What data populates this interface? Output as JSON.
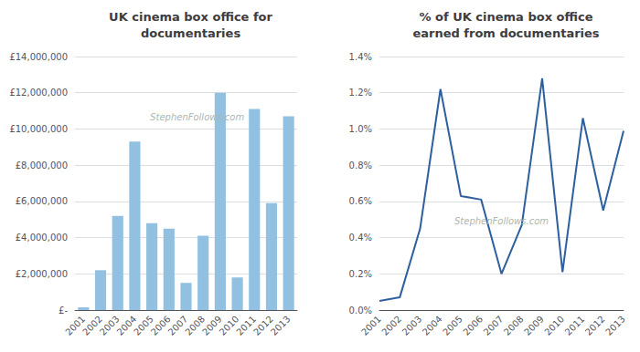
{
  "chart_data": [
    {
      "type": "bar",
      "title": "UK cinema box office for\ndocumentaries",
      "categories": [
        "2001",
        "2002",
        "2003",
        "2004",
        "2005",
        "2006",
        "2007",
        "2008",
        "2009",
        "2010",
        "2011",
        "2012",
        "2013"
      ],
      "values": [
        150000,
        2200000,
        5200000,
        9300000,
        4800000,
        4500000,
        1500000,
        4100000,
        12000000,
        1800000,
        11100000,
        5900000,
        10700000
      ],
      "color": "#92c0e0",
      "ylim": [
        0,
        14000000
      ],
      "yticks": [
        {
          "value": 0,
          "label": "£-"
        },
        {
          "value": 2000000,
          "label": "£2,000,000"
        },
        {
          "value": 4000000,
          "label": "£4,000,000"
        },
        {
          "value": 6000000,
          "label": "£6,000,000"
        },
        {
          "value": 8000000,
          "label": "£8,000,000"
        },
        {
          "value": 10000000,
          "label": "£10,000,000"
        },
        {
          "value": 12000000,
          "label": "£12,000,000"
        },
        {
          "value": 14000000,
          "label": "£14,000,000"
        }
      ],
      "grid": true,
      "annotations": [
        "StephenFollows.com"
      ]
    },
    {
      "type": "line",
      "title": "% of UK cinema box office\nearned from documentaries",
      "categories": [
        "2001",
        "2002",
        "2003",
        "2004",
        "2005",
        "2006",
        "2007",
        "2008",
        "2009",
        "2010",
        "2011",
        "2012",
        "2013"
      ],
      "values": [
        0.05,
        0.07,
        0.45,
        1.22,
        0.63,
        0.61,
        0.2,
        0.47,
        1.28,
        0.21,
        1.06,
        0.55,
        0.99
      ],
      "color": "#2e5f9e",
      "ylim": [
        0,
        1.4
      ],
      "yticks": [
        {
          "value": 0.0,
          "label": "0.0%"
        },
        {
          "value": 0.2,
          "label": "0.2%"
        },
        {
          "value": 0.4,
          "label": "0.4%"
        },
        {
          "value": 0.6,
          "label": "0.6%"
        },
        {
          "value": 0.8,
          "label": "0.8%"
        },
        {
          "value": 1.0,
          "label": "1.0%"
        },
        {
          "value": 1.2,
          "label": "1.2%"
        },
        {
          "value": 1.4,
          "label": "1.4%"
        }
      ],
      "grid": true,
      "annotations": [
        "StephenFollows.com"
      ]
    }
  ]
}
